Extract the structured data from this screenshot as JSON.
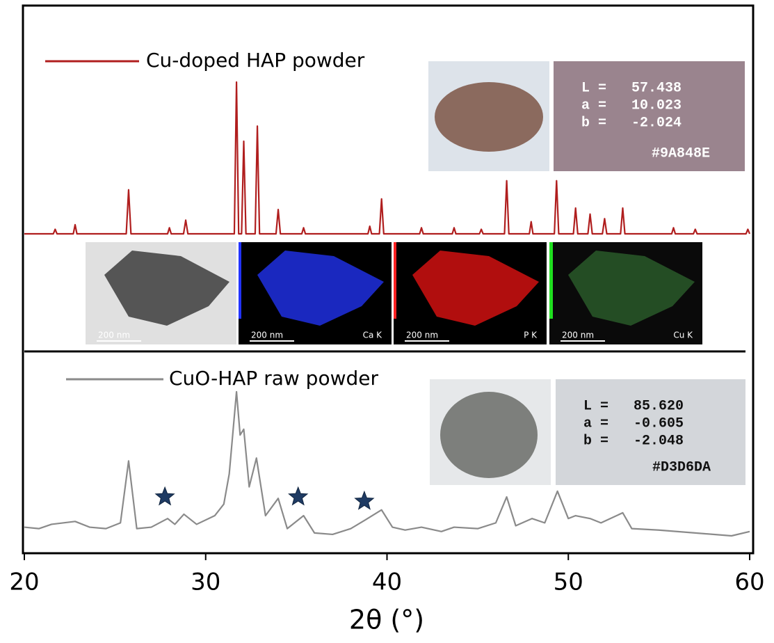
{
  "chart_data": [
    {
      "type": "line",
      "x": [
        20,
        21.6,
        21.7,
        21.8,
        22.7,
        22.8,
        22.9,
        25.62,
        25.75,
        25.88,
        27.9,
        28.0,
        28.1,
        28.78,
        28.9,
        29.02,
        31.58,
        31.7,
        31.82,
        31.98,
        32.1,
        32.22,
        32.73,
        32.85,
        32.97,
        33.88,
        34.0,
        34.12,
        35.3,
        35.4,
        35.5,
        38.95,
        39.05,
        39.15,
        39.58,
        39.7,
        39.82,
        41.8,
        41.9,
        42.0,
        43.6,
        43.7,
        43.8,
        45.1,
        45.2,
        45.3,
        46.48,
        46.6,
        46.72,
        47.85,
        47.95,
        48.05,
        49.23,
        49.35,
        49.47,
        50.28,
        50.4,
        50.52,
        51.08,
        51.2,
        51.32,
        51.88,
        52.0,
        52.12,
        52.88,
        53.0,
        53.12,
        55.7,
        55.8,
        55.9,
        56.9,
        57.0,
        57.1,
        59.8,
        59.9,
        60
      ],
      "series": [
        {
          "name": "Cu-doped HAP powder",
          "color": "#b01e1e",
          "values": [
            0,
            0,
            3,
            0,
            0,
            6,
            0,
            0,
            29,
            0,
            0,
            4,
            0,
            0,
            9,
            0,
            0,
            100,
            0,
            0,
            61,
            0,
            0,
            71,
            0,
            0,
            16,
            0,
            0,
            4,
            0,
            0,
            5,
            0,
            0,
            23,
            0,
            0,
            4,
            0,
            0,
            4,
            0,
            0,
            3,
            0,
            0,
            35,
            0,
            0,
            8,
            0,
            0,
            35,
            0,
            0,
            17,
            0,
            0,
            13,
            0,
            0,
            10,
            0,
            0,
            17,
            0,
            0,
            4,
            0,
            0,
            3,
            0,
            0,
            3,
            0
          ]
        }
      ],
      "xlim": [
        20,
        60
      ],
      "ylim": [
        0,
        100
      ],
      "inset": {
        "color": "#9A848E",
        "lines": [
          "L =   57.438",
          "a =   10.023",
          "b =   -2.024"
        ],
        "code": "#9A848E"
      }
    },
    {
      "type": "line",
      "x": [
        20,
        20.8,
        21.5,
        22.8,
        23.6,
        24.5,
        25.3,
        25.75,
        26.2,
        27.0,
        27.9,
        28.3,
        28.8,
        29.5,
        30.5,
        31.0,
        31.3,
        31.7,
        31.9,
        32.1,
        32.4,
        32.8,
        33.3,
        34.0,
        34.5,
        35.4,
        36.0,
        37.0,
        38.0,
        38.8,
        39.7,
        40.3,
        41.0,
        41.9,
        43.0,
        43.7,
        45.0,
        46.0,
        46.6,
        47.1,
        48.0,
        48.7,
        49.4,
        50.0,
        50.4,
        51.2,
        51.8,
        53.0,
        53.5,
        55.0,
        57.0,
        59.0,
        60
      ],
      "series": [
        {
          "name": "CuO-HAP raw powder",
          "color": "#8a8a8a",
          "values": [
            6,
            5,
            8,
            10,
            6,
            5,
            9,
            52,
            5,
            6,
            12,
            8,
            15,
            8,
            14,
            22,
            43,
            100,
            70,
            74,
            34,
            54,
            14,
            26,
            5,
            14,
            2,
            1,
            5,
            11,
            18,
            6,
            4,
            6,
            3,
            6,
            5,
            9,
            27,
            7,
            12,
            9,
            31,
            12,
            14,
            12,
            9,
            16,
            5,
            4,
            2,
            0,
            3
          ]
        }
      ],
      "xlim": [
        20,
        60
      ],
      "ylim": [
        0,
        100
      ],
      "xticks": [
        20,
        30,
        40,
        50,
        60
      ],
      "xlabel": "2θ (°)",
      "markers": {
        "color": "#1f3b63",
        "x": [
          27.75,
          35.1,
          38.75
        ],
        "values": [
          27,
          27,
          24
        ]
      },
      "inset": {
        "color": "#D3D6DA",
        "lines": [
          "L =   85.620",
          "a =   -0.605",
          "b =   -2.048"
        ],
        "code": "#D3D6DA"
      }
    }
  ],
  "eds_panels": [
    {
      "scale": "200 nm"
    },
    {
      "scale": "200 nm",
      "element": "Ca K"
    },
    {
      "scale": "200 nm",
      "element": "P K"
    },
    {
      "scale": "200 nm",
      "element": "Cu K"
    }
  ]
}
